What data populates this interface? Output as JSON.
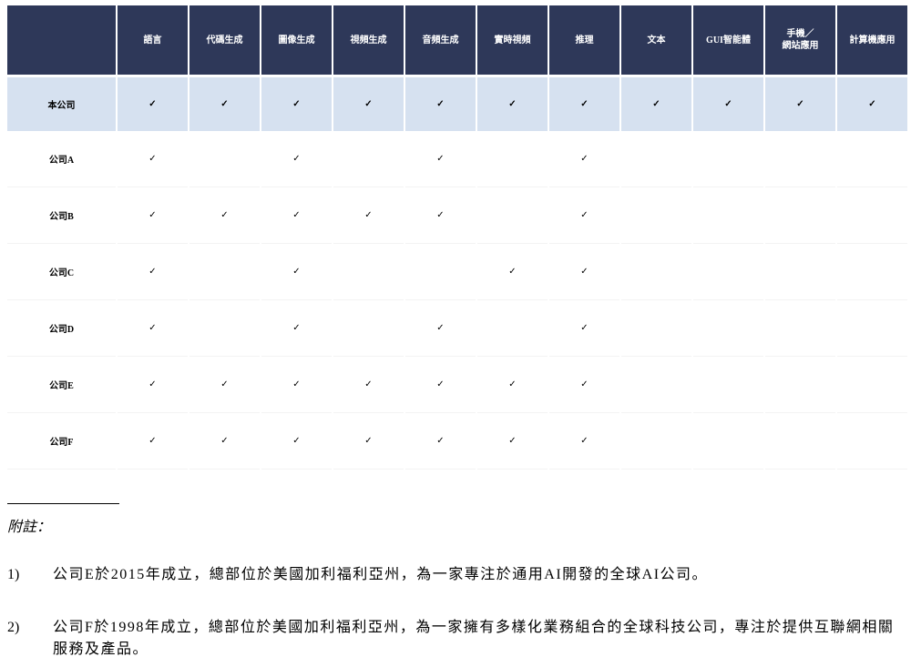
{
  "table": {
    "columns": [
      "語言",
      "代碼生成",
      "圖像生成",
      "視頻生成",
      "音頻生成",
      "實時視頻",
      "推理",
      "文本",
      "GUI智能體",
      "手機／\n網站應用",
      "計算機應用"
    ],
    "check_mark": "✓",
    "rows": [
      {
        "label": "本公司",
        "checks": [
          true,
          true,
          true,
          true,
          true,
          true,
          true,
          true,
          true,
          true,
          true
        ]
      },
      {
        "label": "公司A",
        "checks": [
          true,
          false,
          true,
          false,
          true,
          false,
          true,
          false,
          false,
          false,
          false
        ]
      },
      {
        "label": "公司B",
        "checks": [
          true,
          true,
          true,
          true,
          true,
          false,
          true,
          false,
          false,
          false,
          false
        ]
      },
      {
        "label": "公司C",
        "checks": [
          true,
          false,
          true,
          false,
          false,
          true,
          true,
          false,
          false,
          false,
          false
        ]
      },
      {
        "label": "公司D",
        "checks": [
          true,
          false,
          true,
          false,
          true,
          false,
          true,
          false,
          false,
          false,
          false
        ]
      },
      {
        "label": "公司E",
        "checks": [
          true,
          true,
          true,
          true,
          true,
          true,
          true,
          false,
          false,
          false,
          false
        ]
      },
      {
        "label": "公司F",
        "checks": [
          true,
          true,
          true,
          true,
          true,
          true,
          true,
          false,
          false,
          false,
          false
        ]
      }
    ]
  },
  "notes": {
    "heading": "附註：",
    "items": [
      {
        "num": "1)",
        "text": "公司E於2015年成立，總部位於美國加利福利亞州，為一家專注於通用AI開發的全球AI公司。"
      },
      {
        "num": "2)",
        "text": "公司F於1998年成立，總部位於美國加利福利亞州，為一家擁有多樣化業務組合的全球科技公司，專注於提供互聯網相關服務及產品。"
      }
    ]
  },
  "colors": {
    "header_bg": "#2e3859",
    "highlight_row_bg": "#d6e1f0"
  }
}
